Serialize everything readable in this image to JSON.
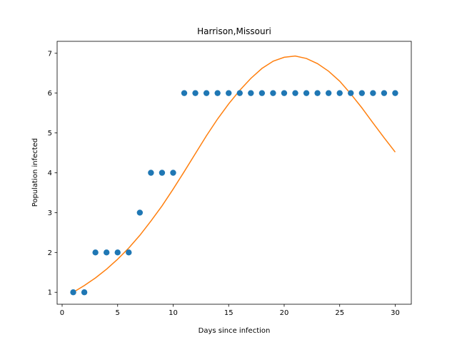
{
  "chart_data": {
    "type": "scatter",
    "title": "Harrison,Missouri",
    "xlabel": "Days since infection",
    "ylabel": "Population infected",
    "xlim": [
      -0.45,
      31.45
    ],
    "ylim": [
      0.7,
      7.3
    ],
    "xticks": [
      0,
      5,
      10,
      15,
      20,
      25,
      30
    ],
    "yticks": [
      1,
      2,
      3,
      4,
      5,
      6,
      7
    ],
    "grid": false,
    "series": [
      {
        "kind": "scatter",
        "color": "#1f77b4",
        "x": [
          1,
          2,
          3,
          4,
          5,
          6,
          7,
          8,
          9,
          10,
          11,
          12,
          13,
          14,
          15,
          16,
          17,
          18,
          19,
          20,
          21,
          22,
          23,
          24,
          25,
          26,
          27,
          28,
          29,
          30
        ],
        "y": [
          1,
          1,
          2,
          2,
          2,
          2,
          3,
          4,
          4,
          4,
          6,
          6,
          6,
          6,
          6,
          6,
          6,
          6,
          6,
          6,
          6,
          6,
          6,
          6,
          6,
          6,
          6,
          6,
          6,
          6
        ]
      },
      {
        "kind": "line",
        "color": "#ff7f0e",
        "x": [
          1,
          2,
          3,
          4,
          5,
          6,
          7,
          8,
          9,
          10,
          11,
          12,
          13,
          14,
          15,
          16,
          17,
          18,
          19,
          20,
          21,
          22,
          23,
          24,
          25,
          26,
          27,
          28,
          29,
          30
        ],
        "y": [
          1.0,
          1.17,
          1.36,
          1.58,
          1.83,
          2.11,
          2.43,
          2.79,
          3.17,
          3.59,
          4.03,
          4.48,
          4.93,
          5.35,
          5.73,
          6.07,
          6.37,
          6.62,
          6.8,
          6.9,
          6.93,
          6.87,
          6.74,
          6.55,
          6.3,
          5.98,
          5.63,
          5.25,
          4.88,
          4.52
        ]
      }
    ]
  }
}
